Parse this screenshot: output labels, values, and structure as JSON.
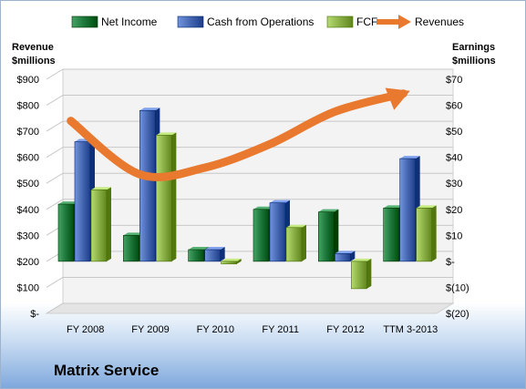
{
  "company_name": "Matrix Service",
  "chart_data": {
    "type": "bar",
    "categories": [
      "FY 2008",
      "FY 2009",
      "FY 2010",
      "FY 2011",
      "FY 2012",
      "TTM 3-2013"
    ],
    "series": [
      {
        "name": "Net Income",
        "axis": "right",
        "values": [
          22,
          10,
          4.5,
          20,
          19,
          20.5
        ],
        "color": "#1f7a3d"
      },
      {
        "name": "Cash from Operations",
        "axis": "right",
        "values": [
          46,
          58,
          4.5,
          22.5,
          3,
          39.5
        ],
        "color": "#4a6bb5"
      },
      {
        "name": "FCF",
        "axis": "right",
        "values": [
          27.5,
          48.5,
          -1,
          13,
          -10.5,
          20.5
        ],
        "color": "#8db34a"
      },
      {
        "name": "Revenues",
        "type": "line",
        "axis": "left",
        "values": [
          740,
          535,
          560,
          650,
          775,
          845
        ],
        "color": "#e8792e"
      }
    ],
    "left_axis": {
      "label_line1": "Revenue",
      "label_line2": "$millions",
      "range": [
        0,
        900
      ],
      "ticks": [
        "$900",
        "$800",
        "$700",
        "$600",
        "$500",
        "$400",
        "$300",
        "$200",
        "$100",
        "$-"
      ]
    },
    "right_axis": {
      "label_line1": "Earnings",
      "label_line2": "$millions",
      "range": [
        -20,
        70
      ],
      "ticks": [
        "$70",
        "$60",
        "$50",
        "$40",
        "$30",
        "$20",
        "$10",
        "$-",
        "$(10)",
        "$(20)"
      ]
    },
    "legend_position": "top",
    "grid": true
  }
}
